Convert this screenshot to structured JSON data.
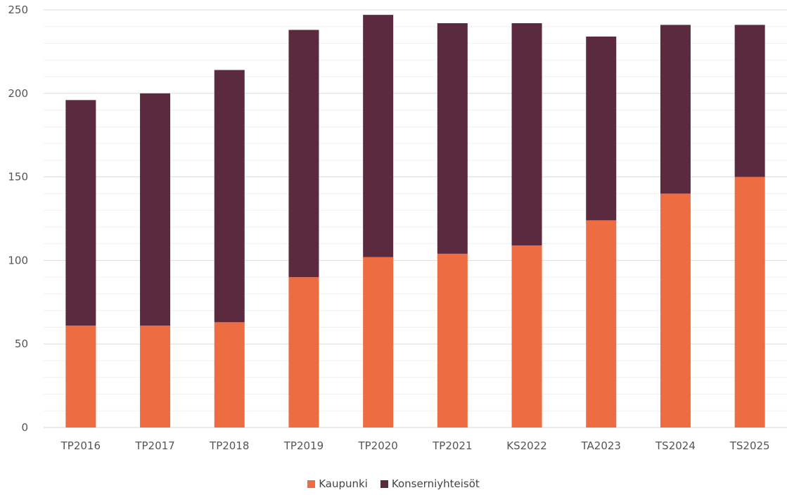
{
  "chart_data": {
    "type": "bar",
    "stacked": true,
    "categories": [
      "TP2016",
      "TP2017",
      "TP2018",
      "TP2019",
      "TP2020",
      "TP2021",
      "KS2022",
      "TA2023",
      "TS2024",
      "TS2025"
    ],
    "series": [
      {
        "name": "Kaupunki",
        "color": "#EE6C42",
        "values": [
          61,
          61,
          63,
          90,
          102,
          104,
          109,
          124,
          140,
          150
        ]
      },
      {
        "name": "Konserniyhteisöt",
        "color": "#5C2A3F",
        "values": [
          135,
          139,
          151,
          148,
          145,
          138,
          133,
          110,
          101,
          91
        ]
      }
    ],
    "ylim": [
      0,
      250
    ],
    "yticks": [
      0,
      50,
      100,
      150,
      200,
      250
    ],
    "title": "",
    "xlabel": "",
    "ylabel": "",
    "grid": true,
    "legend_position": "bottom"
  }
}
